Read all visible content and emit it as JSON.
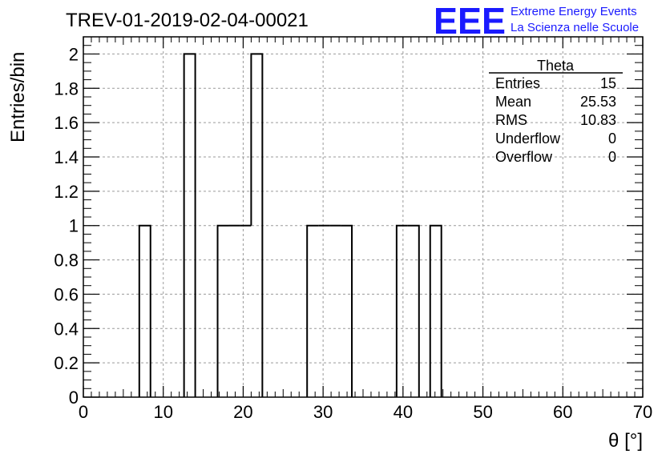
{
  "header": {
    "title": "TREV-01-2019-02-04-00021",
    "logo_mark": "EEE",
    "logo_line1": "Extreme Energy Events",
    "logo_line2": "La Scienza nelle Scuole"
  },
  "colors": {
    "histogram": "#000000",
    "logo": "#1a1aff",
    "grid": "#9a9a9a"
  },
  "stats": {
    "name": "Theta",
    "rows": [
      {
        "label": "Entries",
        "value": "15"
      },
      {
        "label": "Mean",
        "value": "25.53"
      },
      {
        "label": "RMS",
        "value": "10.83"
      },
      {
        "label": "Underflow",
        "value": "0"
      },
      {
        "label": "Overflow",
        "value": "0"
      }
    ]
  },
  "chart_data": {
    "type": "histogram",
    "xlabel": "θ [°]",
    "ylabel": "Entries/bin",
    "xlim": [
      0,
      70
    ],
    "ylim": [
      0,
      2.1
    ],
    "grid": true,
    "x_ticks": [
      0,
      10,
      20,
      30,
      40,
      50,
      60,
      70
    ],
    "y_ticks": [
      0,
      0.2,
      0.4,
      0.6,
      0.8,
      1,
      1.2,
      1.4,
      1.6,
      1.8,
      2
    ],
    "y_tick_labels": [
      "0",
      "0.2",
      "0.4",
      "0.6",
      "0.8",
      "1",
      "1.2",
      "1.4",
      "1.6",
      "1.8",
      "2"
    ],
    "bins": [
      {
        "x0": 7.0,
        "x1": 8.4,
        "value": 1
      },
      {
        "x0": 12.6,
        "x1": 14.0,
        "value": 2
      },
      {
        "x0": 16.8,
        "x1": 18.2,
        "value": 1
      },
      {
        "x0": 18.2,
        "x1": 19.6,
        "value": 1
      },
      {
        "x0": 19.6,
        "x1": 21.0,
        "value": 1
      },
      {
        "x0": 21.0,
        "x1": 22.4,
        "value": 2
      },
      {
        "x0": 28.0,
        "x1": 29.4,
        "value": 1
      },
      {
        "x0": 29.4,
        "x1": 30.8,
        "value": 1
      },
      {
        "x0": 30.8,
        "x1": 32.2,
        "value": 1
      },
      {
        "x0": 32.2,
        "x1": 33.6,
        "value": 1
      },
      {
        "x0": 39.2,
        "x1": 40.6,
        "value": 1
      },
      {
        "x0": 40.6,
        "x1": 42.0,
        "value": 1
      },
      {
        "x0": 43.4,
        "x1": 44.8,
        "value": 1
      }
    ]
  }
}
